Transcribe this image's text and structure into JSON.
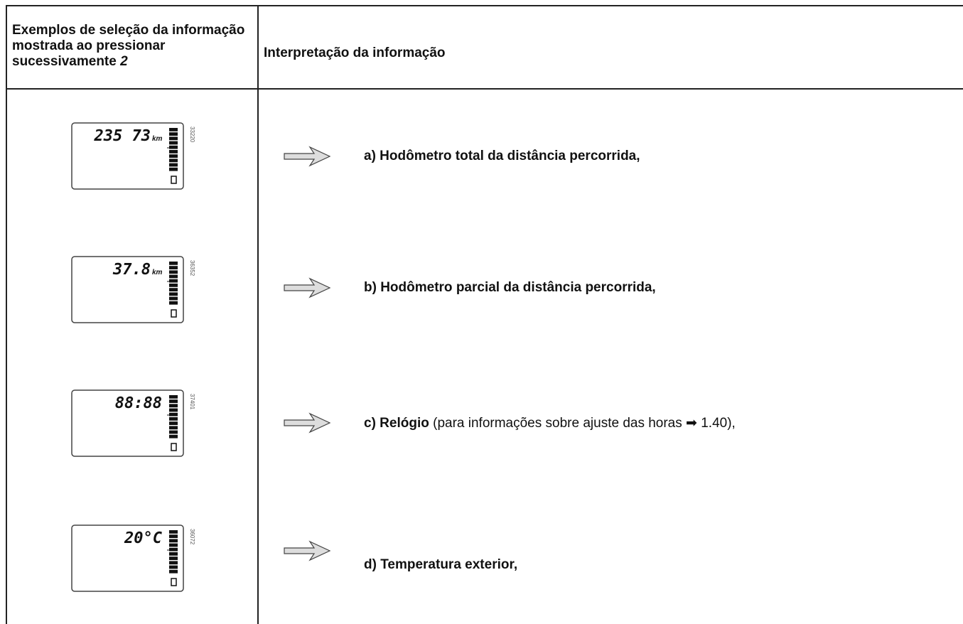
{
  "header": {
    "col1": {
      "text": "Exemplos de seleção da informação mostrada ao pressionar sucessivamente",
      "emphasis": "2"
    },
    "col2": "Interpretação da informação"
  },
  "rows": [
    {
      "display": {
        "reading": "235 73",
        "unit": "km",
        "code": "33220"
      },
      "label": {
        "bold": "a) Hodômetro total da distância percorrida,"
      }
    },
    {
      "display": {
        "reading": "37.8",
        "unit": "km",
        "code": "36352"
      },
      "label": {
        "bold": "b) Hodômetro parcial da distância percorrida,"
      }
    },
    {
      "display": {
        "reading": "88:88",
        "code": "37401"
      },
      "label": {
        "bold": "c) Relógio",
        "rest": "(para informações sobre ajuste das horas ➡ 1.40),"
      }
    },
    {
      "display": {
        "reading": "20°C",
        "code": "36072"
      },
      "label": {
        "bold": "d) Temperatura exterior,"
      }
    }
  ]
}
